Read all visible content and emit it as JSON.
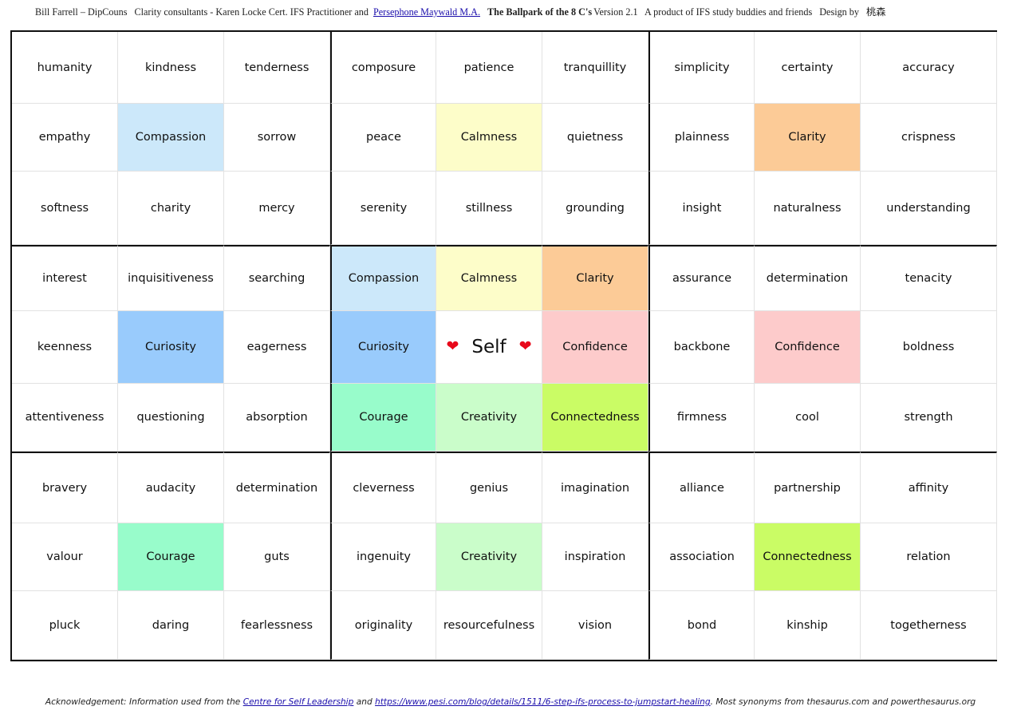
{
  "header": {
    "author": "Bill Farrell – DipCouns",
    "consultants_prefix": "Clarity consultants - Karen Locke Cert. IFS Practitioner and",
    "consultant_link": "Persephone Maywald M.A.",
    "title": "The Ballpark of the 8 C's",
    "version": "Version 2.1",
    "product": "A product of IFS study buddies and friends",
    "design_by": "Design by",
    "designer": "桃森"
  },
  "colors": {
    "compassion": "#cce8fa",
    "calmness": "#fdfdc9",
    "clarity": "#fccb97",
    "curiosity": "#99cbfc",
    "confidence": "#fdcbcb",
    "courage": "#98fccb",
    "creativity": "#cafdca",
    "connectedness": "#cafc65",
    "heart": "#e8091b"
  },
  "grid": {
    "rows": [
      [
        {
          "t": "humanity"
        },
        {
          "t": "kindness"
        },
        {
          "t": "tenderness"
        },
        {
          "t": "composure"
        },
        {
          "t": "patience"
        },
        {
          "t": "tranquillity"
        },
        {
          "t": "simplicity"
        },
        {
          "t": "certainty"
        },
        {
          "t": "accuracy"
        }
      ],
      [
        {
          "t": "empathy"
        },
        {
          "t": "Compassion",
          "c": "compassion"
        },
        {
          "t": "sorrow"
        },
        {
          "t": "peace"
        },
        {
          "t": "Calmness",
          "c": "calmness"
        },
        {
          "t": "quietness"
        },
        {
          "t": "plainness"
        },
        {
          "t": "Clarity",
          "c": "clarity"
        },
        {
          "t": "crispness"
        }
      ],
      [
        {
          "t": "softness"
        },
        {
          "t": "charity"
        },
        {
          "t": "mercy"
        },
        {
          "t": "serenity"
        },
        {
          "t": "stillness"
        },
        {
          "t": "grounding"
        },
        {
          "t": "insight"
        },
        {
          "t": "naturalness"
        },
        {
          "t": "understanding"
        }
      ],
      [
        {
          "t": "interest"
        },
        {
          "t": "inquisitiveness"
        },
        {
          "t": "searching"
        },
        {
          "t": "Compassion",
          "c": "compassion"
        },
        {
          "t": "Calmness",
          "c": "calmness"
        },
        {
          "t": "Clarity",
          "c": "clarity"
        },
        {
          "t": "assurance"
        },
        {
          "t": "determination"
        },
        {
          "t": "tenacity"
        }
      ],
      [
        {
          "t": "keenness"
        },
        {
          "t": "Curiosity",
          "c": "curiosity"
        },
        {
          "t": "eagerness"
        },
        {
          "t": "Curiosity",
          "c": "curiosity"
        },
        {
          "t": "Self",
          "self": true
        },
        {
          "t": "Confidence",
          "c": "confidence"
        },
        {
          "t": "backbone"
        },
        {
          "t": "Confidence",
          "c": "confidence"
        },
        {
          "t": "boldness"
        }
      ],
      [
        {
          "t": "attentiveness"
        },
        {
          "t": "questioning"
        },
        {
          "t": "absorption"
        },
        {
          "t": "Courage",
          "c": "courage"
        },
        {
          "t": "Creativity",
          "c": "creativity"
        },
        {
          "t": "Connectedness",
          "c": "connectedness"
        },
        {
          "t": "firmness"
        },
        {
          "t": "cool"
        },
        {
          "t": "strength"
        }
      ],
      [
        {
          "t": "bravery"
        },
        {
          "t": "audacity"
        },
        {
          "t": "determination"
        },
        {
          "t": "cleverness"
        },
        {
          "t": "genius"
        },
        {
          "t": "imagination"
        },
        {
          "t": "alliance"
        },
        {
          "t": "partnership"
        },
        {
          "t": "affinity"
        }
      ],
      [
        {
          "t": "valour"
        },
        {
          "t": "Courage",
          "c": "courage"
        },
        {
          "t": "guts"
        },
        {
          "t": "ingenuity"
        },
        {
          "t": "Creativity",
          "c": "creativity"
        },
        {
          "t": "inspiration"
        },
        {
          "t": "association"
        },
        {
          "t": "Connectedness",
          "c": "connectedness"
        },
        {
          "t": "relation"
        }
      ],
      [
        {
          "t": "pluck"
        },
        {
          "t": "daring"
        },
        {
          "t": "fearlessness"
        },
        {
          "t": "originality"
        },
        {
          "t": "resourcefulness"
        },
        {
          "t": "vision"
        },
        {
          "t": "bond"
        },
        {
          "t": "kinship"
        },
        {
          "t": "togetherness"
        }
      ]
    ]
  },
  "footer": {
    "prefix": "Acknowledgement: Information used from the",
    "link1": "Centre for Self Leadership",
    "and": "and",
    "link2": "https://www.pesi.com/blog/details/1511/6-step-ifs-process-to-jumpstart-healing",
    "suffix": ". Most synonyms from thesaurus.com and powerthesaurus.org"
  }
}
